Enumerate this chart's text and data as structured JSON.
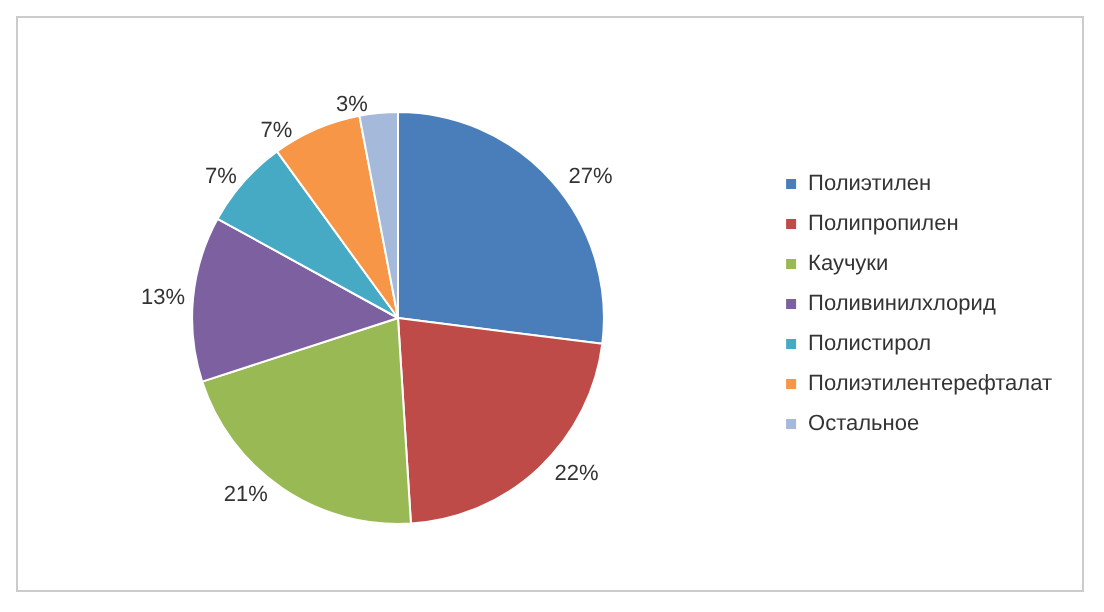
{
  "chart_data": {
    "type": "pie",
    "categories": [
      "Полиэтилен",
      "Полипропилен",
      "Каучуки",
      "Поливинилхлорид",
      "Полистирол",
      "Полиэтилентерефталат",
      "Остальное"
    ],
    "values": [
      27,
      22,
      21,
      13,
      7,
      7,
      3
    ],
    "value_labels": [
      "27%",
      "22%",
      "21%",
      "13%",
      "7%",
      "7%",
      "3%"
    ],
    "colors": [
      "#4a7ebb",
      "#be4b48",
      "#98b954",
      "#7d60a0",
      "#46aac5",
      "#f79646",
      "#a5b9db"
    ],
    "legend": "right"
  }
}
